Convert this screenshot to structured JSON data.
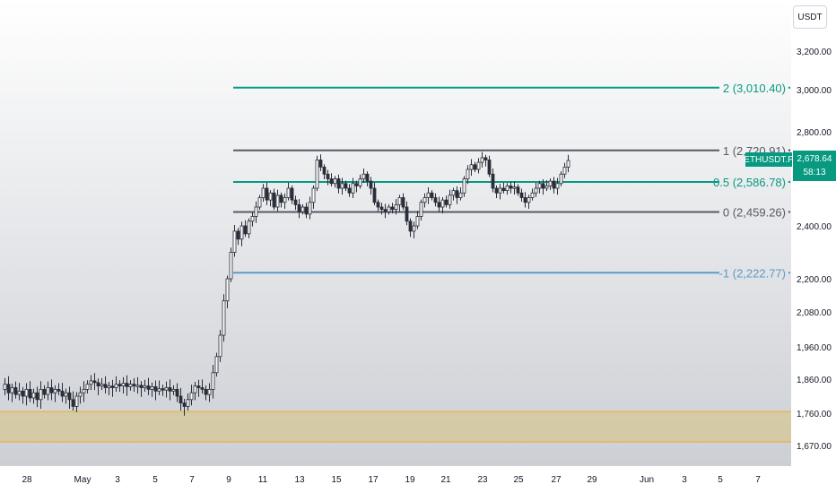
{
  "currency": "USDT",
  "symbol": "ETHUSDT.P",
  "last_price": "2,678.64",
  "countdown": "58:13",
  "colors": {
    "up": "#089981",
    "down": "#131722",
    "candle": "#2a2e39",
    "fib_green": "#089981",
    "fib_gray": "#555a66",
    "fib_blue": "#5b9bc9",
    "zone_fill": "#d4c99a",
    "zone_border": "#f0a830"
  },
  "chart_data": {
    "type": "candlestick",
    "price_axis_ticks": [
      "3,200.00",
      "3,000.00",
      "2,800.00",
      "2,400.00",
      "2,200.00",
      "2,080.00",
      "1,960.00",
      "1,860.00",
      "1,760.00",
      "1,670.00"
    ],
    "time_axis_ticks": [
      "28",
      "May",
      "3",
      "5",
      "7",
      "9",
      "11",
      "13",
      "15",
      "17",
      "19",
      "21",
      "23",
      "25",
      "27",
      "29",
      "Jun",
      "3",
      "5",
      "7"
    ],
    "fib_levels": [
      {
        "label": "2 (3,010.40)",
        "value": 3010.4,
        "color": "#089981"
      },
      {
        "label": "1 (2,720.91)",
        "value": 2720.91,
        "color": "#555a66"
      },
      {
        "label": "0.5 (2,586.78)",
        "value": 2586.78,
        "color": "#089981"
      },
      {
        "label": "0 (2,459.26)",
        "value": 2459.26,
        "color": "#555a66"
      },
      {
        "label": "-1 (2,222.77)",
        "value": 2222.77,
        "color": "#5b9bc9"
      }
    ],
    "zone": {
      "high": 1765,
      "low": 1680
    },
    "close_path": [
      [
        0,
        1830
      ],
      [
        4,
        1845
      ],
      [
        8,
        1820
      ],
      [
        12,
        1835
      ],
      [
        16,
        1815
      ],
      [
        20,
        1825
      ],
      [
        24,
        1810
      ],
      [
        28,
        1830
      ],
      [
        32,
        1805
      ],
      [
        36,
        1820
      ],
      [
        40,
        1800
      ],
      [
        44,
        1830
      ],
      [
        48,
        1815
      ],
      [
        52,
        1835
      ],
      [
        56,
        1820
      ],
      [
        60,
        1830
      ],
      [
        64,
        1825
      ],
      [
        68,
        1810
      ],
      [
        72,
        1820
      ],
      [
        76,
        1800
      ],
      [
        80,
        1780
      ],
      [
        84,
        1810
      ],
      [
        88,
        1820
      ],
      [
        92,
        1830
      ],
      [
        96,
        1845
      ],
      [
        100,
        1855
      ],
      [
        104,
        1850
      ],
      [
        108,
        1840
      ],
      [
        112,
        1845
      ],
      [
        116,
        1835
      ],
      [
        120,
        1840
      ],
      [
        124,
        1835
      ],
      [
        128,
        1845
      ],
      [
        132,
        1840
      ],
      [
        136,
        1848
      ],
      [
        140,
        1838
      ],
      [
        144,
        1845
      ],
      [
        148,
        1840
      ],
      [
        152,
        1842
      ],
      [
        156,
        1835
      ],
      [
        160,
        1840
      ],
      [
        164,
        1830
      ],
      [
        168,
        1838
      ],
      [
        172,
        1825
      ],
      [
        176,
        1832
      ],
      [
        180,
        1828
      ],
      [
        184,
        1835
      ],
      [
        188,
        1825
      ],
      [
        192,
        1830
      ],
      [
        196,
        1810
      ],
      [
        200,
        1790
      ],
      [
        204,
        1780
      ],
      [
        208,
        1800
      ],
      [
        212,
        1820
      ],
      [
        216,
        1840
      ],
      [
        220,
        1835
      ],
      [
        224,
        1830
      ],
      [
        228,
        1815
      ],
      [
        232,
        1830
      ],
      [
        236,
        1880
      ],
      [
        240,
        1930
      ],
      [
        244,
        2000
      ],
      [
        248,
        2120
      ],
      [
        252,
        2200
      ],
      [
        256,
        2300
      ],
      [
        260,
        2380
      ],
      [
        264,
        2350
      ],
      [
        268,
        2400
      ],
      [
        272,
        2370
      ],
      [
        276,
        2420
      ],
      [
        280,
        2440
      ],
      [
        284,
        2480
      ],
      [
        288,
        2520
      ],
      [
        292,
        2560
      ],
      [
        296,
        2510
      ],
      [
        300,
        2540
      ],
      [
        304,
        2480
      ],
      [
        308,
        2530
      ],
      [
        312,
        2500
      ],
      [
        316,
        2520
      ],
      [
        320,
        2560
      ],
      [
        324,
        2510
      ],
      [
        328,
        2490
      ],
      [
        332,
        2460
      ],
      [
        336,
        2480
      ],
      [
        340,
        2450
      ],
      [
        344,
        2500
      ],
      [
        348,
        2560
      ],
      [
        352,
        2680
      ],
      [
        356,
        2650
      ],
      [
        360,
        2620
      ],
      [
        364,
        2600
      ],
      [
        368,
        2580
      ],
      [
        372,
        2600
      ],
      [
        376,
        2560
      ],
      [
        380,
        2580
      ],
      [
        384,
        2560
      ],
      [
        388,
        2540
      ],
      [
        392,
        2580
      ],
      [
        396,
        2570
      ],
      [
        400,
        2600
      ],
      [
        404,
        2620
      ],
      [
        408,
        2590
      ],
      [
        412,
        2560
      ],
      [
        416,
        2500
      ],
      [
        420,
        2480
      ],
      [
        424,
        2470
      ],
      [
        428,
        2460
      ],
      [
        432,
        2480
      ],
      [
        436,
        2470
      ],
      [
        440,
        2490
      ],
      [
        444,
        2520
      ],
      [
        448,
        2480
      ],
      [
        452,
        2420
      ],
      [
        456,
        2380
      ],
      [
        460,
        2400
      ],
      [
        464,
        2440
      ],
      [
        468,
        2500
      ],
      [
        472,
        2520
      ],
      [
        476,
        2540
      ],
      [
        480,
        2520
      ],
      [
        484,
        2500
      ],
      [
        488,
        2480
      ],
      [
        492,
        2510
      ],
      [
        496,
        2490
      ],
      [
        500,
        2530
      ],
      [
        504,
        2550
      ],
      [
        508,
        2520
      ],
      [
        512,
        2540
      ],
      [
        516,
        2600
      ],
      [
        520,
        2640
      ],
      [
        524,
        2660
      ],
      [
        528,
        2640
      ],
      [
        532,
        2670
      ],
      [
        536,
        2690
      ],
      [
        540,
        2680
      ],
      [
        544,
        2620
      ],
      [
        548,
        2560
      ],
      [
        552,
        2540
      ],
      [
        556,
        2560
      ],
      [
        560,
        2550
      ],
      [
        564,
        2570
      ],
      [
        568,
        2560
      ],
      [
        572,
        2565
      ],
      [
        576,
        2540
      ],
      [
        580,
        2520
      ],
      [
        584,
        2500
      ],
      [
        588,
        2520
      ],
      [
        592,
        2540
      ],
      [
        596,
        2560
      ],
      [
        600,
        2580
      ],
      [
        604,
        2560
      ],
      [
        608,
        2570
      ],
      [
        612,
        2590
      ],
      [
        616,
        2560
      ],
      [
        620,
        2580
      ],
      [
        624,
        2620
      ],
      [
        628,
        2650
      ],
      [
        632,
        2678
      ]
    ]
  }
}
